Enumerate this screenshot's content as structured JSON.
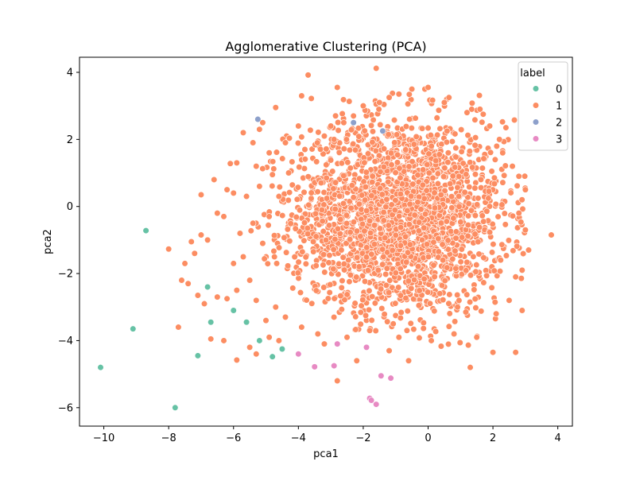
{
  "chart_data": {
    "type": "scatter",
    "title": "Agglomerative Clustering (PCA)",
    "xlabel": "pca1",
    "ylabel": "pca2",
    "xlim": [
      -10.75,
      4.45
    ],
    "ylim": [
      -6.55,
      4.45
    ],
    "xticks": [
      -10,
      -8,
      -6,
      -4,
      -2,
      0,
      2,
      4
    ],
    "yticks": [
      -6,
      -4,
      -2,
      0,
      2,
      4
    ],
    "grid": false,
    "legend": {
      "title": "label",
      "position": "top-right",
      "entries": [
        {
          "label": "0",
          "color": "#66c2a5"
        },
        {
          "label": "1",
          "color": "#fc8d62"
        },
        {
          "label": "2",
          "color": "#8da0cb"
        },
        {
          "label": "3",
          "color": "#e78ac3"
        }
      ]
    },
    "series": [
      {
        "name": "0",
        "color": "#66c2a5",
        "points": [
          [
            -10.1,
            -4.8
          ],
          [
            -9.1,
            -3.65
          ],
          [
            -8.7,
            -0.72
          ],
          [
            -7.8,
            -6.0
          ],
          [
            -7.1,
            -4.45
          ],
          [
            -6.8,
            -2.4
          ],
          [
            -6.7,
            -3.45
          ],
          [
            -6.0,
            -3.1
          ],
          [
            -5.6,
            -3.45
          ],
          [
            -5.2,
            -4.0
          ],
          [
            -4.8,
            -4.48
          ],
          [
            -4.5,
            -4.25
          ]
        ]
      },
      {
        "name": "1",
        "color": "#fc8d62",
        "cloud": {
          "count": 2400,
          "center": [
            -0.9,
            -0.3
          ],
          "x_range": [
            -5.5,
            3.0
          ],
          "y_range": [
            -4.7,
            3.4
          ]
        },
        "points": [
          [
            -3.7,
            3.92
          ],
          [
            -1.6,
            4.12
          ],
          [
            -2.8,
            3.55
          ],
          [
            -3.9,
            3.3
          ],
          [
            -3.6,
            3.22
          ],
          [
            -4.7,
            2.95
          ],
          [
            -5.2,
            2.3
          ],
          [
            -5.1,
            2.5
          ],
          [
            -5.4,
            1.9
          ],
          [
            -5.7,
            2.2
          ],
          [
            -6.1,
            1.28
          ],
          [
            -5.9,
            1.3
          ],
          [
            -6.6,
            0.8
          ],
          [
            -7.0,
            0.35
          ],
          [
            -6.2,
            0.5
          ],
          [
            -6.0,
            0.4
          ],
          [
            -6.5,
            -0.2
          ],
          [
            -6.3,
            -0.3
          ],
          [
            -7.0,
            -0.85
          ],
          [
            -6.8,
            -1.0
          ],
          [
            -7.3,
            -1.05
          ],
          [
            -7.2,
            -1.4
          ],
          [
            -7.5,
            -1.7
          ],
          [
            -7.4,
            -2.3
          ],
          [
            -7.1,
            -2.65
          ],
          [
            -6.9,
            -2.9
          ],
          [
            -6.5,
            -2.7
          ],
          [
            -6.2,
            -2.75
          ],
          [
            -6.7,
            -3.95
          ],
          [
            -6.3,
            -4.0
          ],
          [
            -5.9,
            -4.58
          ],
          [
            -5.3,
            -4.4
          ],
          [
            -5.5,
            -4.2
          ],
          [
            -7.7,
            -3.6
          ],
          [
            -8.0,
            -1.27
          ],
          [
            -7.6,
            -2.2
          ],
          [
            -4.9,
            -3.9
          ],
          [
            -4.6,
            -4.0
          ],
          [
            -4.4,
            -3.3
          ],
          [
            -4.0,
            -4.4
          ],
          [
            -3.2,
            -4.1
          ],
          [
            -2.8,
            -5.2
          ],
          [
            -2.2,
            -4.6
          ],
          [
            -1.2,
            -4.3
          ],
          [
            -0.6,
            -4.6
          ],
          [
            1.3,
            -4.8
          ],
          [
            2.0,
            -4.35
          ],
          [
            2.7,
            -4.35
          ],
          [
            2.9,
            -3.1
          ],
          [
            3.1,
            -1.3
          ],
          [
            3.8,
            -0.85
          ],
          [
            3.0,
            -0.7
          ],
          [
            2.8,
            0.9
          ],
          [
            3.0,
            0.5
          ],
          [
            2.4,
            2.35
          ],
          [
            2.2,
            2.0
          ],
          [
            1.6,
            2.9
          ],
          [
            1.7,
            2.75
          ],
          [
            -0.5,
            3.5
          ],
          [
            -0.1,
            3.5
          ],
          [
            0.0,
            3.55
          ],
          [
            -0.9,
            3.35
          ],
          [
            -1.2,
            3.25
          ],
          [
            -1.6,
            3.05
          ],
          [
            -2.0,
            3.0
          ],
          [
            -2.3,
            2.7
          ],
          [
            -2.6,
            2.5
          ],
          [
            -3.0,
            2.4
          ],
          [
            -3.2,
            2.1
          ],
          [
            -4.0,
            2.4
          ],
          [
            -4.4,
            1.9
          ],
          [
            -4.9,
            1.6
          ],
          [
            -5.3,
            1.2
          ],
          [
            -4.8,
            0.95
          ],
          [
            -5.2,
            0.6
          ],
          [
            -5.6,
            0.3
          ],
          [
            -5.4,
            -0.5
          ],
          [
            -5.8,
            -0.8
          ],
          [
            -5.7,
            -1.5
          ],
          [
            -6.0,
            -1.7
          ],
          [
            -5.5,
            -2.2
          ],
          [
            -5.9,
            -2.5
          ],
          [
            -5.3,
            -2.8
          ],
          [
            -5.0,
            -3.4
          ],
          [
            -4.7,
            -3.0
          ],
          [
            -3.9,
            -3.6
          ],
          [
            -3.4,
            -3.8
          ],
          [
            -2.5,
            -3.9
          ],
          [
            -1.8,
            -3.7
          ],
          [
            -0.9,
            -3.9
          ],
          [
            0.1,
            -4.0
          ],
          [
            0.8,
            -3.8
          ],
          [
            1.5,
            -3.9
          ],
          [
            2.1,
            -3.2
          ],
          [
            2.5,
            -2.8
          ],
          [
            2.7,
            -2.1
          ],
          [
            2.9,
            -1.9
          ],
          [
            2.8,
            -0.2
          ],
          [
            2.6,
            1.2
          ],
          [
            2.3,
            1.6
          ],
          [
            1.9,
            2.4
          ],
          [
            1.2,
            2.8
          ],
          [
            0.5,
            3.1
          ],
          [
            -1.5,
            3.1
          ],
          [
            -2.9,
            2.0
          ],
          [
            -3.8,
            1.7
          ],
          [
            -4.3,
            1.0
          ],
          [
            -4.6,
            0.3
          ],
          [
            -4.9,
            -0.3
          ],
          [
            -5.1,
            -1.1
          ]
        ]
      },
      {
        "name": "2",
        "color": "#8da0cb",
        "points": [
          [
            -5.25,
            2.6
          ],
          [
            -2.3,
            2.5
          ],
          [
            -1.4,
            2.25
          ]
        ]
      },
      {
        "name": "3",
        "color": "#e78ac3",
        "points": [
          [
            -4.0,
            -4.4
          ],
          [
            -3.5,
            -4.78
          ],
          [
            -2.9,
            -4.75
          ],
          [
            -2.8,
            -4.1
          ],
          [
            -1.9,
            -4.2
          ],
          [
            -1.45,
            -5.05
          ],
          [
            -1.15,
            -5.12
          ],
          [
            -1.8,
            -5.72
          ],
          [
            -1.75,
            -5.78
          ],
          [
            -1.6,
            -5.9
          ]
        ]
      }
    ]
  }
}
